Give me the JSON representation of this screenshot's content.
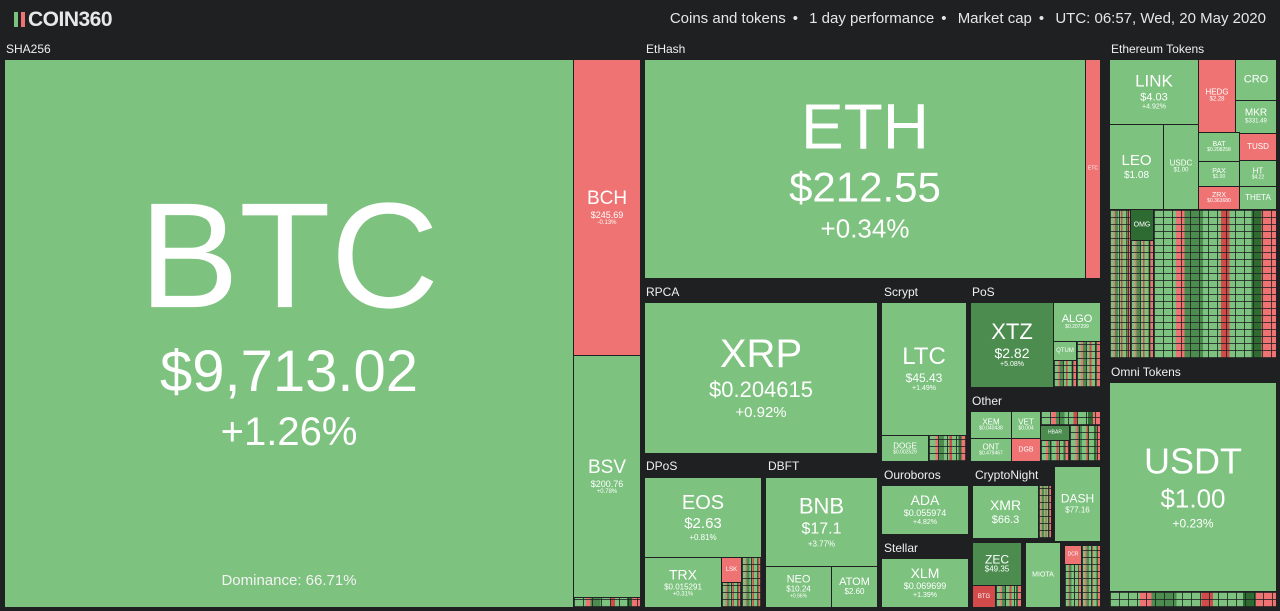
{
  "header": {
    "logo_text": "COIN360",
    "filters": [
      "Coins and tokens",
      "1 day performance",
      "Market cap"
    ],
    "time": "UTC: 06:57, Wed, 20 May 2020"
  },
  "groups": {
    "sha256": "SHA256",
    "ethash": "EtHash",
    "eth_tokens": "Ethereum Tokens",
    "rpca": "RPCA",
    "scrypt": "Scrypt",
    "pos": "PoS",
    "other": "Other",
    "omni": "Omni Tokens",
    "dpos": "DPoS",
    "dbft": "DBFT",
    "ouroboros": "Ouroboros",
    "cryptonight": "CryptoNight",
    "stellar": "Stellar"
  },
  "coins": {
    "btc": {
      "symbol": "BTC",
      "price": "$9,713.02",
      "change": "+1.26%",
      "dominance": "Dominance: 66.71%"
    },
    "bch": {
      "symbol": "BCH",
      "price": "$245.69",
      "change": "-0.13%"
    },
    "bsv": {
      "symbol": "BSV",
      "price": "$200.76",
      "change": "+0.78%"
    },
    "eth": {
      "symbol": "ETH",
      "price": "$212.55",
      "change": "+0.34%"
    },
    "etc": {
      "symbol": "ETC"
    },
    "xrp": {
      "symbol": "XRP",
      "price": "$0.204615",
      "change": "+0.92%"
    },
    "ltc": {
      "symbol": "LTC",
      "price": "$45.43",
      "change": "+1.49%"
    },
    "doge": {
      "symbol": "DOGE",
      "price": "$0.002529"
    },
    "xtz": {
      "symbol": "XTZ",
      "price": "$2.82",
      "change": "+5.08%"
    },
    "algo": {
      "symbol": "ALGO",
      "price": "$0.207299"
    },
    "qtum": {
      "symbol": "QTUM"
    },
    "xem": {
      "symbol": "XEM",
      "price": "$0.040438"
    },
    "vet": {
      "symbol": "VET",
      "price": "$0.004"
    },
    "ont": {
      "symbol": "ONT",
      "price": "$0.479467"
    },
    "dgb": {
      "symbol": "DGB"
    },
    "hbar": {
      "symbol": "HBAR"
    },
    "link": {
      "symbol": "LINK",
      "price": "$4.03",
      "change": "+4.92%"
    },
    "hedg": {
      "symbol": "HEDG",
      "price": "$2.28"
    },
    "cro": {
      "symbol": "CRO"
    },
    "mkr": {
      "symbol": "MKR",
      "price": "$331.49"
    },
    "leo": {
      "symbol": "LEO",
      "price": "$1.08"
    },
    "usdc": {
      "symbol": "USDC",
      "price": "$1.00"
    },
    "bat": {
      "symbol": "BAT",
      "price": "$0.208258"
    },
    "tusd": {
      "symbol": "TUSD"
    },
    "pax": {
      "symbol": "PAX",
      "price": "$1.00"
    },
    "ht": {
      "symbol": "HT",
      "price": "$4.22"
    },
    "zrx": {
      "symbol": "ZRX",
      "price": "$0.363680"
    },
    "theta": {
      "symbol": "THETA"
    },
    "omg": {
      "symbol": "OMG"
    },
    "usdt": {
      "symbol": "USDT",
      "price": "$1.00",
      "change": "+0.23%"
    },
    "eos": {
      "symbol": "EOS",
      "price": "$2.63",
      "change": "+0.81%"
    },
    "trx": {
      "symbol": "TRX",
      "price": "$0.015291",
      "change": "+0.31%"
    },
    "lsk": {
      "symbol": "LSK"
    },
    "bnb": {
      "symbol": "BNB",
      "price": "$17.1",
      "change": "+3.77%"
    },
    "neo": {
      "symbol": "NEO",
      "price": "$10.24",
      "change": "+0.96%"
    },
    "atom": {
      "symbol": "ATOM",
      "price": "$2.60"
    },
    "ada": {
      "symbol": "ADA",
      "price": "$0.055974",
      "change": "+4.82%"
    },
    "xmr": {
      "symbol": "XMR",
      "price": "$66.3"
    },
    "dash": {
      "symbol": "DASH",
      "price": "$77.16"
    },
    "zec": {
      "symbol": "ZEC",
      "price": "$49.35"
    },
    "btg": {
      "symbol": "BTG"
    },
    "miota": {
      "symbol": "MIOTA"
    },
    "dcr": {
      "symbol": "DCR"
    },
    "xlm": {
      "symbol": "XLM",
      "price": "$0.069699",
      "change": "+1.39%"
    }
  }
}
